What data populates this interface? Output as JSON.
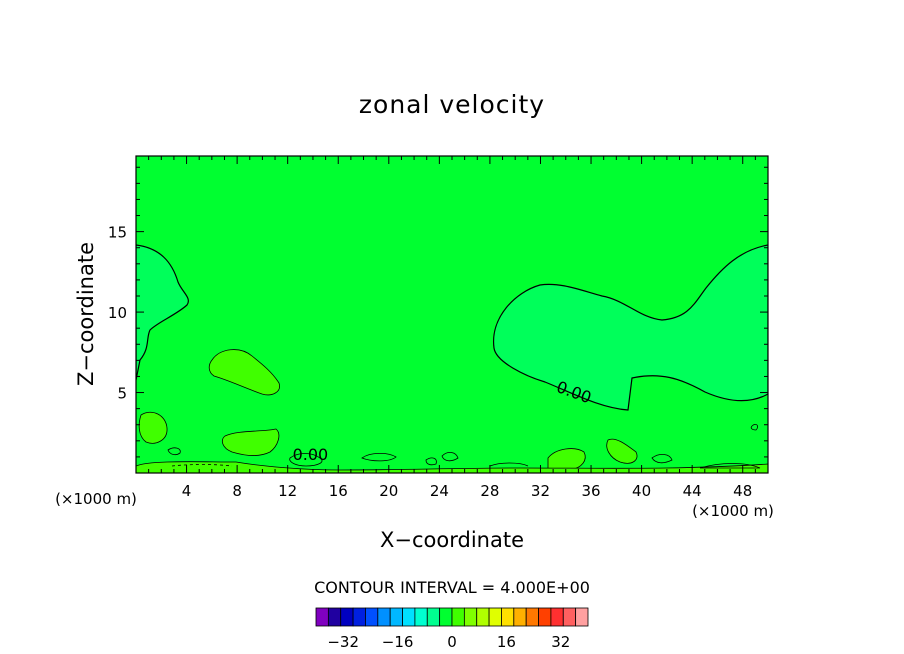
{
  "chart_data": {
    "type": "heatmap",
    "title": "zonal velocity",
    "xlabel": "X−coordinate",
    "ylabel": "Z−coordinate",
    "x_unit_left": "(×1000 m)",
    "x_unit_right": "(×1000 m)",
    "xlim": [
      0,
      50
    ],
    "ylim": [
      0,
      19.7
    ],
    "x_ticks": [
      4,
      8,
      12,
      16,
      20,
      24,
      28,
      32,
      36,
      40,
      44,
      48
    ],
    "x_tick_labels": [
      "4",
      "8",
      "12",
      "16",
      "20",
      "24",
      "28",
      "32",
      "36",
      "40",
      "44",
      "48"
    ],
    "y_ticks": [
      5,
      10,
      15
    ],
    "y_tick_labels": [
      "5",
      "10",
      "15"
    ],
    "contour_labels": [
      {
        "text": "0.00",
        "x": 34.5,
        "y": 4.7,
        "angle": 20
      },
      {
        "text": "0.00",
        "x": 13.8,
        "y": 0.8,
        "angle": 0
      }
    ],
    "contour_interval_text": "CONTOUR INTERVAL = 4.000E+00",
    "colorbar": {
      "min": -40,
      "max": 40,
      "step": 4,
      "colors": [
        "#8000c0",
        "#2000a0",
        "#0000c0",
        "#0020e0",
        "#0050ff",
        "#0090ff",
        "#00b8ff",
        "#00e0ff",
        "#00ffd0",
        "#00ff90",
        "#00ff30",
        "#40ff00",
        "#80ff00",
        "#b0ff00",
        "#e0ff00",
        "#ffe000",
        "#ffb000",
        "#ff7800",
        "#ff4000",
        "#ff3030",
        "#ff6060",
        "#ffa0a0"
      ],
      "tick_values": [
        -32,
        -16,
        0,
        16,
        32
      ],
      "tick_labels": [
        "−32",
        "−16",
        "0",
        "16",
        "32"
      ]
    }
  }
}
